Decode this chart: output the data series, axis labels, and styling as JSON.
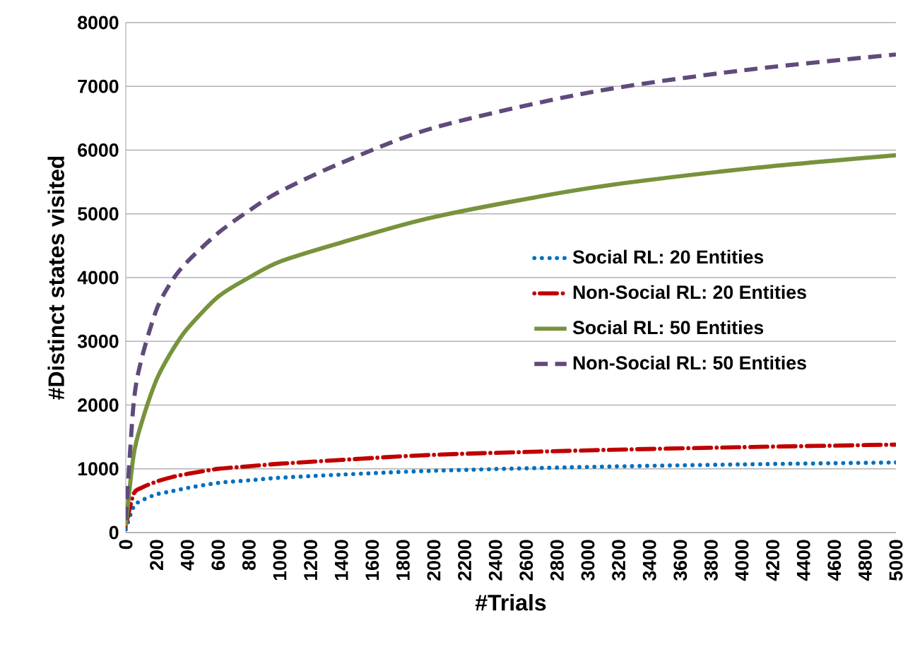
{
  "chart_data": {
    "type": "line",
    "xlabel": "#Trials",
    "ylabel": "#Distinct states visited",
    "xlim": [
      0,
      5000
    ],
    "ylim": [
      0,
      8000
    ],
    "xticks": [
      0,
      200,
      400,
      600,
      800,
      1000,
      1200,
      1400,
      1600,
      1800,
      2000,
      2200,
      2400,
      2600,
      2800,
      3000,
      3200,
      3400,
      3600,
      3800,
      4000,
      4200,
      4400,
      4600,
      4800,
      5000
    ],
    "yticks": [
      0,
      1000,
      2000,
      3000,
      4000,
      5000,
      6000,
      7000,
      8000
    ],
    "grid": "y",
    "legend": "right",
    "marker": "none",
    "x": [
      0,
      50,
      100,
      200,
      300,
      400,
      600,
      800,
      1000,
      1400,
      2000,
      3000,
      4000,
      5000
    ],
    "series": [
      {
        "name": "Social RL: 20 Entities",
        "color": "#0070c0",
        "line_style": "dotted",
        "values": [
          50,
          400,
          500,
          600,
          650,
          700,
          780,
          820,
          860,
          910,
          970,
          1030,
          1070,
          1100
        ]
      },
      {
        "name": "Non-Social RL: 20 Entities",
        "color": "#c00000",
        "line_style": "dashdot",
        "values": [
          100,
          600,
          700,
          800,
          870,
          920,
          1000,
          1040,
          1080,
          1140,
          1220,
          1290,
          1340,
          1380
        ]
      },
      {
        "name": "Social RL: 50 Entities",
        "color": "#77933c",
        "line_style": "solid",
        "values": [
          100,
          1200,
          1700,
          2400,
          2850,
          3200,
          3700,
          4000,
          4250,
          4550,
          4950,
          5400,
          5700,
          5920
        ]
      },
      {
        "name": "Non-Social RL: 50 Entities",
        "color": "#604a7b",
        "line_style": "dashed",
        "values": [
          200,
          2000,
          2700,
          3500,
          3950,
          4250,
          4700,
          5050,
          5350,
          5800,
          6350,
          6900,
          7250,
          7500
        ]
      }
    ]
  }
}
